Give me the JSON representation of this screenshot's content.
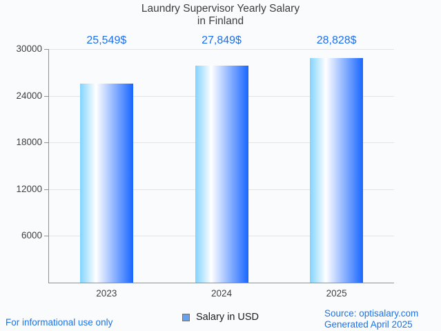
{
  "title": {
    "line1": "Laundry Supervisor Yearly Salary",
    "line2": "in Finland"
  },
  "chart_data": {
    "type": "bar",
    "title": "Laundry Supervisor Yearly Salary in Finland",
    "categories": [
      "2023",
      "2024",
      "2025"
    ],
    "values": [
      25549,
      27849,
      28828
    ],
    "value_labels": [
      "25,549$",
      "27,849$",
      "28,828$"
    ],
    "series": [
      {
        "name": "Salary in USD",
        "values": [
          25549,
          27849,
          28828
        ]
      }
    ],
    "xlabel": "",
    "ylabel": "",
    "ylim": [
      0,
      30000
    ],
    "yticks": [
      6000,
      12000,
      18000,
      24000,
      30000
    ],
    "grid": "horizontal",
    "legend_position": "bottom-center",
    "bar_gradient": [
      "#82d3fe",
      "#ffffff",
      "#1866ff"
    ],
    "bar_gradient_white_stop": 30
  },
  "legend": {
    "label": "Salary in USD",
    "swatch_color": "#64a1f0"
  },
  "footer": {
    "disclaimer": "For informational use only",
    "source": "Source: optisalary.com",
    "generated": "Generated April 2025"
  },
  "colors": {
    "background": "#fafbfd",
    "accent_blue": "#1a73e8",
    "value_label_blue": "#1a6ff0",
    "title_gray": "#3d3d3d",
    "axis_line_gray": "#8f8f8f",
    "grid_gray": "#e4e4e4"
  }
}
